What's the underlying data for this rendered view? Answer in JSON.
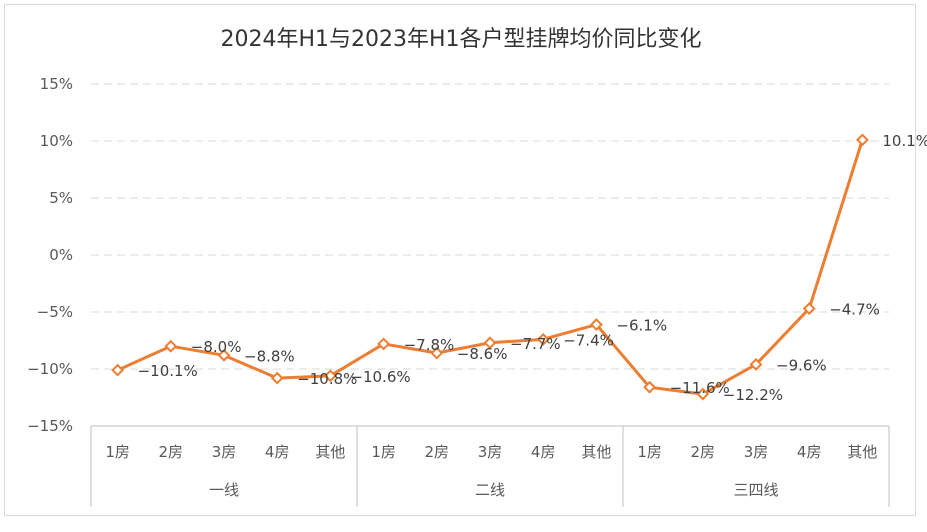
{
  "chart_data": {
    "type": "line",
    "title": "2024年H1与2023年H1各户型挂牌均价同比变化",
    "y_ticks": [
      "15%",
      "10%",
      "5%",
      "0%",
      "−5%",
      "−10%",
      "−15%"
    ],
    "ylim": [
      -15,
      15
    ],
    "y_unit": "%",
    "grid": "horizontal dashed",
    "legend": "none",
    "line_color": "#ED7D31",
    "groups": [
      {
        "name": "一线",
        "categories": [
          "1房",
          "2房",
          "3房",
          "4房",
          "其他"
        ]
      },
      {
        "name": "二线",
        "categories": [
          "1房",
          "2房",
          "3房",
          "4房",
          "其他"
        ]
      },
      {
        "name": "三四线",
        "categories": [
          "1房",
          "2房",
          "3房",
          "4房",
          "其他"
        ]
      }
    ],
    "values": [
      [
        -10.1,
        -8.0,
        -8.8,
        -10.8,
        -10.6
      ],
      [
        -7.8,
        -8.6,
        -7.7,
        -7.4,
        -6.1
      ],
      [
        -11.6,
        -12.2,
        -9.6,
        -4.7,
        10.1
      ]
    ],
    "data_labels": [
      [
        "−10.1%",
        "−8.0%",
        "−8.8%",
        "−10.8%",
        "−10.6%"
      ],
      [
        "−7.8%",
        "−8.6%",
        "−7.7%",
        "−7.4%",
        "−6.1%"
      ],
      [
        "−11.6%",
        "−12.2%",
        "−9.6%",
        "−4.7%",
        "10.1%"
      ]
    ]
  }
}
